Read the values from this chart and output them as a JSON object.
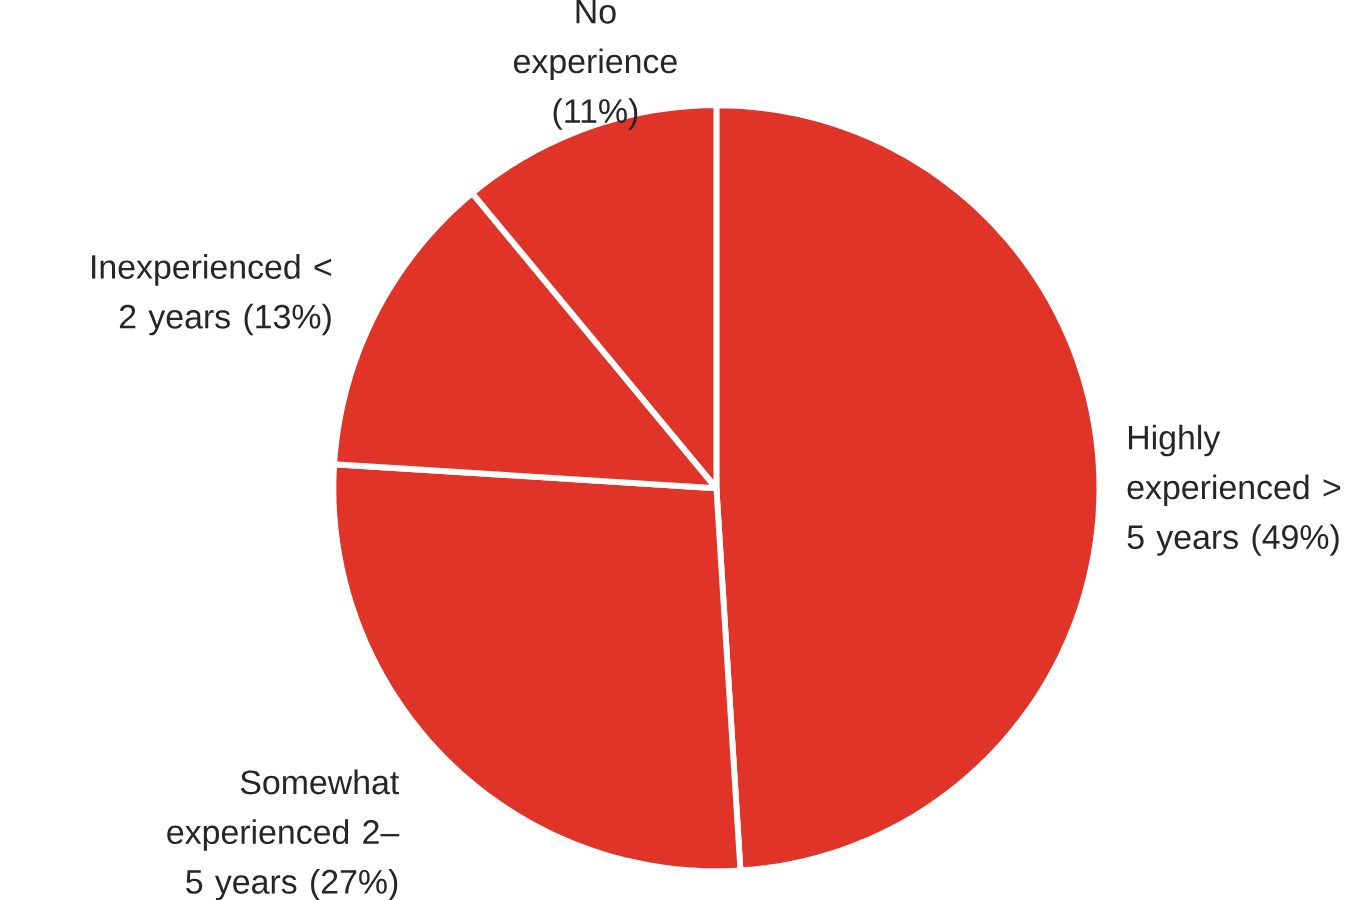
{
  "chart_data": {
    "type": "pie",
    "categories": [
      "Highly experienced > 5 years",
      "Somewhat experienced 2–5 years",
      "Inexperienced < 2 years",
      "No experience"
    ],
    "values": [
      49,
      27,
      13,
      11
    ],
    "value_labels": [
      "(49%)",
      "(27%)",
      "(13%)",
      "(11%)"
    ],
    "colors": [
      "#e03429",
      "#e03429",
      "#e03429",
      "#e03429"
    ]
  }
}
